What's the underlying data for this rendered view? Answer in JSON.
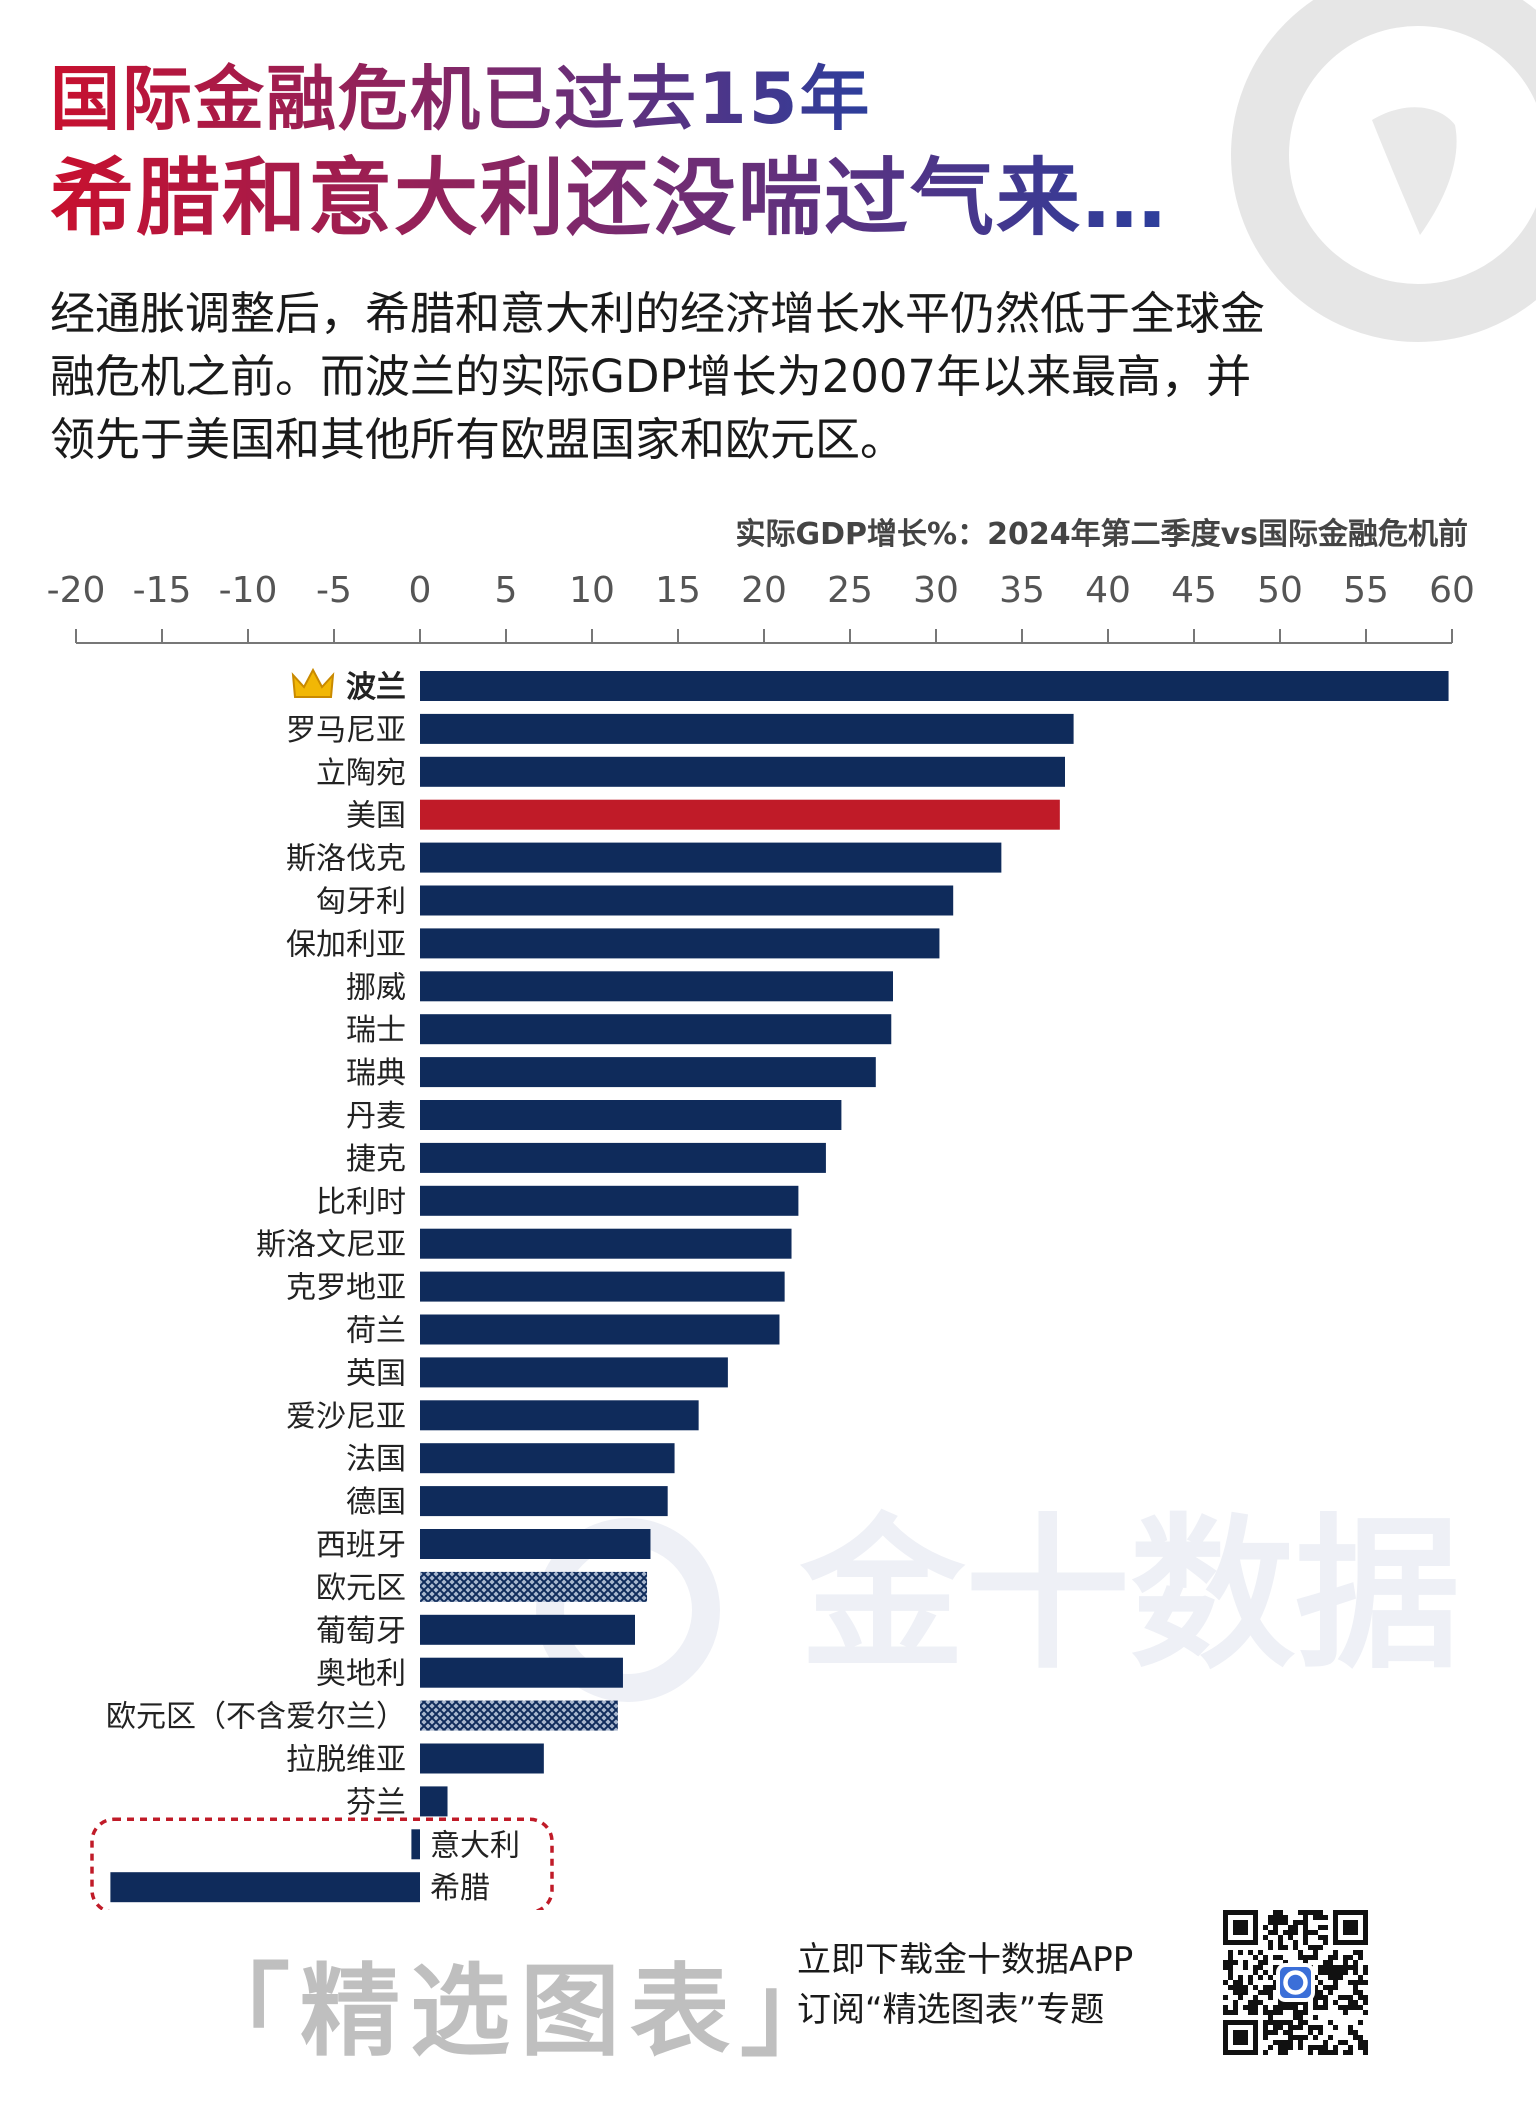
{
  "header": {
    "title_line1": "国际金融危机已过去15年",
    "title_line2": "希腊和意大利还没喘过气来…",
    "description": "经通胀调整后，希腊和意大利的经济增长水平仍然低于全球金融危机之前。而波兰的实际GDP增长为2007年以来最高，并领先于美国和其他所有欧盟国家和欧元区。"
  },
  "watermark": {
    "text": "金十数据"
  },
  "footer": {
    "section_title": "「精选图表」",
    "cta_line1": "立即下载金十数据APP",
    "cta_line2": "订阅“精选图表”专题"
  },
  "colors": {
    "bar": "#0f2b5b",
    "highlight": "#c01b28",
    "annotation_box": "#c01b28",
    "tick_text": "#555555"
  },
  "chart_data": {
    "type": "bar",
    "orientation": "horizontal",
    "title": "实际GDP增长%：2024年第二季度vs国际金融危机前",
    "xlim": [
      -20,
      60
    ],
    "xticks": [
      -20,
      -15,
      -10,
      -5,
      0,
      5,
      10,
      15,
      20,
      25,
      30,
      35,
      40,
      45,
      50,
      55,
      60
    ],
    "categories": [
      "波兰",
      "罗马尼亚",
      "立陶宛",
      "美国",
      "斯洛伐克",
      "匈牙利",
      "保加利亚",
      "挪威",
      "瑞士",
      "瑞典",
      "丹麦",
      "捷克",
      "比利时",
      "斯洛文尼亚",
      "克罗地亚",
      "荷兰",
      "英国",
      "爱沙尼亚",
      "法国",
      "德国",
      "西班牙",
      "欧元区",
      "葡萄牙",
      "奥地利",
      "欧元区（不含爱尔兰）",
      "拉脱维亚",
      "芬兰",
      "意大利",
      "希腊"
    ],
    "values": [
      59.8,
      38.0,
      37.5,
      37.2,
      33.8,
      31.0,
      30.2,
      27.5,
      27.4,
      26.5,
      24.5,
      23.6,
      22.0,
      21.6,
      21.2,
      20.9,
      17.9,
      16.2,
      14.8,
      14.4,
      13.4,
      13.2,
      12.5,
      11.8,
      11.5,
      7.2,
      1.6,
      -0.5,
      -18.0
    ],
    "highlight": [
      "美国"
    ],
    "hatched": [
      "欧元区",
      "欧元区（不含爱尔兰）"
    ],
    "crowned": [
      "波兰"
    ],
    "annotated_box": [
      "意大利",
      "希腊"
    ],
    "grid": false
  }
}
